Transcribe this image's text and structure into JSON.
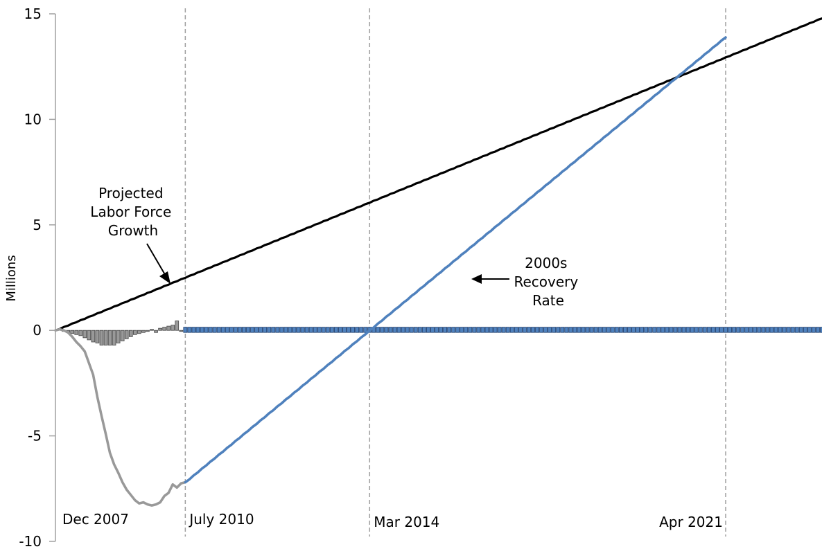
{
  "chart_data": {
    "type": "line",
    "title": "",
    "xlabel": "",
    "ylabel": "Millions",
    "ylim": [
      -10,
      15
    ],
    "yticks": [
      15,
      10,
      5,
      0,
      -5,
      -10
    ],
    "xlim": [
      0,
      183
    ],
    "grid": false,
    "x_markers": [
      {
        "label": "Dec 2007",
        "x": 0,
        "line": false
      },
      {
        "label": "July 2010",
        "x": 31,
        "line": true
      },
      {
        "label": "Mar 2014",
        "x": 75,
        "line": true
      },
      {
        "label": "Apr 2021",
        "x": 160,
        "line": true
      }
    ],
    "series": [
      {
        "name": "Projected Labor Force Growth",
        "color": "#000000",
        "x": [
          0,
          183
        ],
        "y": [
          0,
          14.8
        ]
      },
      {
        "name": "",
        "color": "#999999",
        "x": [
          0,
          1,
          2,
          3,
          4,
          5,
          6,
          7,
          8,
          9,
          10,
          11,
          12,
          13,
          14,
          15,
          16,
          17,
          18,
          19,
          20,
          21,
          22,
          23,
          24,
          25,
          26,
          27,
          28,
          29,
          30,
          31
        ],
        "y": [
          0.0,
          0.05,
          0.0,
          -0.1,
          -0.3,
          -0.55,
          -0.75,
          -1.0,
          -1.55,
          -2.1,
          -3.15,
          -4.05,
          -4.9,
          -5.8,
          -6.35,
          -6.75,
          -7.2,
          -7.55,
          -7.8,
          -8.05,
          -8.2,
          -8.15,
          -8.25,
          -8.3,
          -8.25,
          -8.15,
          -7.85,
          -7.7,
          -7.3,
          -7.45,
          -7.25,
          -7.2
        ]
      },
      {
        "name": "2000s Recovery Rate",
        "color": "#4f81bd",
        "x": [
          31,
          160
        ],
        "y": [
          -7.2,
          13.9
        ]
      }
    ],
    "bar_series": {
      "color": "#999999",
      "x": [
        2,
        3,
        4,
        5,
        6,
        7,
        8,
        9,
        10,
        11,
        12,
        13,
        14,
        15,
        16,
        17,
        18,
        19,
        20,
        21,
        22,
        23,
        24,
        25,
        26,
        27,
        28,
        29,
        30
      ],
      "values": [
        -0.05,
        -0.1,
        -0.15,
        -0.2,
        -0.25,
        -0.35,
        -0.45,
        -0.55,
        -0.6,
        -0.7,
        -0.7,
        -0.7,
        -0.7,
        -0.6,
        -0.5,
        -0.4,
        -0.3,
        -0.2,
        -0.15,
        -0.1,
        -0.05,
        0.05,
        -0.1,
        0.1,
        0.15,
        0.2,
        0.25,
        0.45,
        -0.05
      ]
    },
    "zero_bar_series": {
      "color": "#4f81bd",
      "edge_color": "#1f3f6e",
      "x_start": 31,
      "x_end": 183,
      "value": 0.15
    },
    "annotations": [
      {
        "text_lines": [
          "Projected",
          "Labor Force",
          "Growth"
        ]
      },
      {
        "text_lines": [
          "2000s",
          "Recovery",
          "Rate"
        ]
      }
    ]
  }
}
